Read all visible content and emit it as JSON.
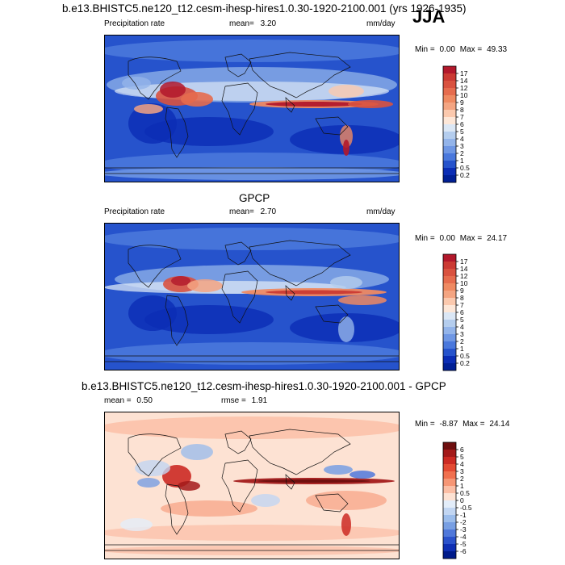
{
  "season": "JJA",
  "chart_data": [
    {
      "type": "heatmap",
      "panel": "model",
      "title": "b.e13.BHISTC5.ne120_t12.cesm-ihesp-hires1.0.30-1920-2100.001 (yrs 1926-1935)",
      "left_label": "Precipitation rate",
      "stat_label": "mean=",
      "stat_value": "3.20",
      "units": "mm/day",
      "min_label": "Min =",
      "min_value": "0.00",
      "max_label": "Max =",
      "max_value": "49.33",
      "colorbar_levels": [
        "17",
        "14",
        "12",
        "10",
        "9",
        "8",
        "7",
        "6",
        "5",
        "4",
        "3",
        "2",
        "1",
        "0.5",
        "0.2"
      ],
      "colorbar_colors": [
        "#b2182b",
        "#cb3a33",
        "#d9523f",
        "#e66c4e",
        "#ef8a62",
        "#f4a582",
        "#fbc9ae",
        "#fde7d8",
        "#dbe7f5",
        "#b4cdee",
        "#93b4ea",
        "#6f97e4",
        "#4a78dc",
        "#2653cc",
        "#0b2db5",
        "#001f95"
      ]
    },
    {
      "type": "heatmap",
      "panel": "obs",
      "title": "GPCP",
      "left_label": "Precipitation rate",
      "stat_label": "mean=",
      "stat_value": "2.70",
      "units": "mm/day",
      "min_label": "Min =",
      "min_value": "0.00",
      "max_label": "Max =",
      "max_value": "24.17",
      "colorbar_levels": [
        "17",
        "14",
        "12",
        "10",
        "9",
        "8",
        "7",
        "6",
        "5",
        "4",
        "3",
        "2",
        "1",
        "0.5",
        "0.2"
      ],
      "colorbar_colors": [
        "#b2182b",
        "#cb3a33",
        "#d9523f",
        "#e66c4e",
        "#ef8a62",
        "#f4a582",
        "#fbc9ae",
        "#fde7d8",
        "#dbe7f5",
        "#b4cdee",
        "#93b4ea",
        "#6f97e4",
        "#4a78dc",
        "#2653cc",
        "#0b2db5",
        "#001f95"
      ]
    },
    {
      "type": "heatmap",
      "panel": "diff",
      "title": "b.e13.BHISTC5.ne120_t12.cesm-ihesp-hires1.0.30-1920-2100.001 - GPCP",
      "stat_label": "mean =",
      "stat_value": "0.50",
      "stat2_label": "rmse =",
      "stat2_value": "1.91",
      "min_label": "Min =",
      "min_value": "-8.87",
      "max_label": "Max =",
      "max_value": "24.14",
      "colorbar_levels": [
        "6",
        "5",
        "4",
        "3",
        "2",
        "1",
        "0.5",
        "0",
        "-0.5",
        "-1",
        "-2",
        "-3",
        "-4",
        "-5",
        "-6"
      ],
      "colorbar_colors": [
        "#6e0f0f",
        "#a31a1a",
        "#cc2a23",
        "#e34a33",
        "#f0704f",
        "#f69675",
        "#fbbea5",
        "#fde2d3",
        "#e3edf9",
        "#c2d6f2",
        "#9cbdeb",
        "#789fe3",
        "#5078da",
        "#2b52cb",
        "#0f2fb3",
        "#001b8a"
      ]
    }
  ]
}
